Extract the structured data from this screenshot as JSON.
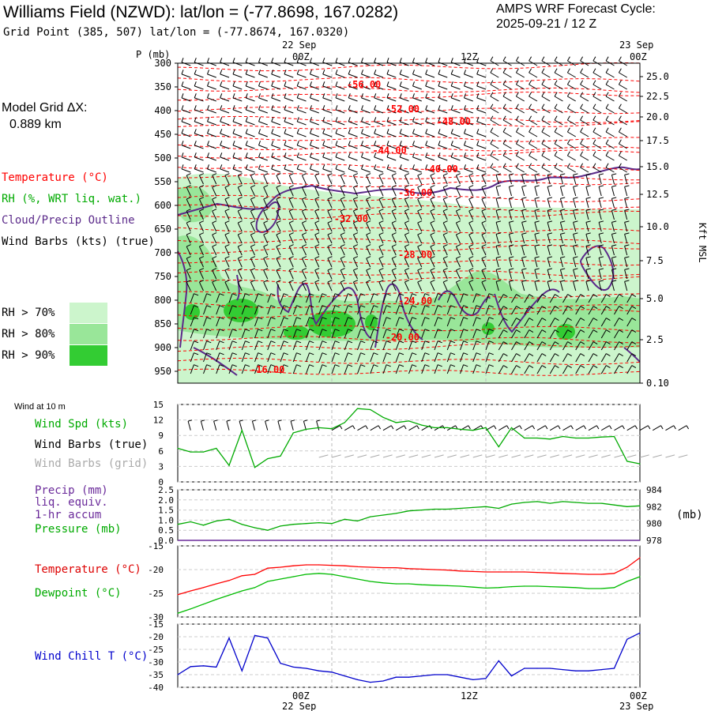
{
  "header": {
    "title": "Williams Field (NZWD):  lat/lon = (-77.8698, 167.0282)",
    "grid_point": "Grid Point (385, 507) lat/lon = (-77.8674, 167.0320)",
    "cycle_line1": "AMPS WRF Forecast Cycle:",
    "cycle_line2": "2025-09-21 / 12  Z"
  },
  "side": {
    "model_grid": "Model Grid ΔX:",
    "model_grid_value": "0.889 km",
    "temperature": "Temperature (°C)",
    "rh": "RH (%, WRT liq. wat.)",
    "cloud": "Cloud/Precip Outline",
    "wind_barbs": "Wind Barbs (kts) (true)",
    "rh70": "RH > 70%",
    "rh80": "RH > 80%",
    "rh90": "RH > 90%"
  },
  "colors": {
    "temperature": "#ff0000",
    "rh70": "#ccf5cc",
    "rh80": "#99e699",
    "rh90": "#33cc33",
    "cloud": "#5b2a8a",
    "wind": "#00aa00",
    "precip": "#6a2a9a",
    "pressure": "#00aa00",
    "dewpoint": "#00bb00",
    "windchill": "#0000cc",
    "grid_barbs": "#aaaaaa"
  },
  "time_axis": {
    "top_date_left": "22 Sep",
    "top_date_right": "23 Sep",
    "ticks": [
      "00Z",
      "12Z",
      "00Z"
    ],
    "bottom_dates": [
      "22 Sep",
      "23 Sep"
    ]
  },
  "panel_labels": {
    "wind_at_10m": "Wind at 10 m",
    "wind_spd": "Wind Spd (kts)",
    "wind_barbs_true": "Wind Barbs (true)",
    "wind_barbs_grid": "Wind Barbs (grid)",
    "precip": "Precip (mm)",
    "liq_equiv": "liq. equiv.",
    "accum": "1-hr accum",
    "pressure": "Pressure (mb)",
    "pressure_unit": "(mb)",
    "temperature": "Temperature (°C)",
    "dewpoint": "Dewpoint (°C)",
    "windchill": "Wind Chill T (°C)",
    "p_axis_label": "P (mb)",
    "kft_label": "Kft MSL"
  },
  "chart_data": [
    {
      "type": "heatmap",
      "panel": "vertical cross-section",
      "y_axis": {
        "label": "P (mb)",
        "ticks": [
          300,
          350,
          400,
          450,
          500,
          550,
          600,
          650,
          700,
          750,
          800,
          850,
          900,
          950
        ],
        "range": [
          300,
          975
        ]
      },
      "y2_axis": {
        "label": "Kft MSL",
        "ticks": [
          "25.0",
          "22.5",
          "20.0",
          "17.5",
          "15.0",
          "12.5",
          "10.0",
          "7.5",
          "5.0",
          "2.5",
          "0.10"
        ]
      },
      "x_range_hours": [
        -12,
        24
      ],
      "temperature_contour_labels": [
        {
          "label": "-56.00",
          "hour": 2.5,
          "p": 352
        },
        {
          "label": "-52.00",
          "hour": 5.5,
          "p": 403
        },
        {
          "label": "-48.00",
          "hour": 9.5,
          "p": 430
        },
        {
          "label": "-44.00",
          "hour": 4.5,
          "p": 491
        },
        {
          "label": "-40.00",
          "hour": 8.5,
          "p": 530
        },
        {
          "label": "-36.00",
          "hour": 6.5,
          "p": 580
        },
        {
          "label": "-32.00",
          "hour": 1.5,
          "p": 635
        },
        {
          "label": "-28.00",
          "hour": 6.5,
          "p": 711
        },
        {
          "label": "-24.00",
          "hour": 6.5,
          "p": 808
        },
        {
          "label": "-20.00",
          "hour": 5.5,
          "p": 885
        },
        {
          "label": "-16.00",
          "hour": -5.0,
          "p": 953
        }
      ]
    },
    {
      "type": "line",
      "panel": "wind at 10 m",
      "ylim": [
        0,
        15
      ],
      "yticks": [
        0,
        3,
        6,
        9,
        12,
        15
      ],
      "x_hours": [
        -12,
        -11,
        -10,
        -9,
        -8,
        -7,
        -6,
        -5,
        -4,
        -3,
        -2,
        -1,
        0,
        1,
        2,
        3,
        4,
        5,
        6,
        7,
        8,
        9,
        10,
        11,
        12,
        13,
        14,
        15,
        16,
        17,
        18,
        19,
        20,
        21,
        22,
        23,
        24
      ],
      "series": [
        {
          "name": "Wind Spd (kts)",
          "values": [
            6.5,
            5.8,
            5.8,
            6.5,
            3.2,
            10.0,
            2.8,
            4.5,
            5.0,
            9.5,
            10.2,
            10.5,
            10.3,
            11.5,
            14.2,
            14.0,
            12.5,
            11.5,
            11.8,
            11.0,
            10.5,
            10.5,
            10.2,
            10.0,
            10.5,
            6.8,
            10.5,
            8.5,
            8.5,
            8.3,
            8.8,
            8.5,
            8.5,
            8.7,
            8.8,
            4.0,
            3.5
          ]
        }
      ]
    },
    {
      "type": "line",
      "panel": "precip / pressure",
      "ylim": [
        0,
        2.5
      ],
      "yticks": [
        "0.0",
        "0.5",
        "1.0",
        "1.5",
        "2.0",
        "2.5"
      ],
      "y2ticks": [
        "978",
        "980",
        "982",
        "984"
      ],
      "x_hours": [
        -12,
        -11,
        -10,
        -9,
        -8,
        -7,
        -6,
        -5,
        -4,
        -3,
        -2,
        -1,
        0,
        1,
        2,
        3,
        4,
        5,
        6,
        7,
        8,
        9,
        10,
        11,
        12,
        13,
        14,
        15,
        16,
        17,
        18,
        19,
        20,
        21,
        22,
        23,
        24
      ],
      "series": [
        {
          "name": "Pressure (mb)",
          "values": [
            979.9,
            980.2,
            979.8,
            980.3,
            980.5,
            979.9,
            979.5,
            979.2,
            979.7,
            979.9,
            980.0,
            980.1,
            980.0,
            980.5,
            980.3,
            980.8,
            981.0,
            981.2,
            981.5,
            981.6,
            981.7,
            981.7,
            981.8,
            981.9,
            982.0,
            981.8,
            982.3,
            982.5,
            982.6,
            982.4,
            982.6,
            982.5,
            982.4,
            982.4,
            982.2,
            982.0,
            982.1
          ]
        },
        {
          "name": "Precip (mm)",
          "values": [
            0,
            0,
            0,
            0,
            0,
            0,
            0,
            0,
            0,
            0,
            0,
            0,
            0,
            0,
            0,
            0,
            0,
            0,
            0,
            0,
            0,
            0,
            0,
            0,
            0,
            0,
            0,
            0,
            0,
            0,
            0,
            0,
            0,
            0,
            0,
            0,
            0
          ]
        }
      ]
    },
    {
      "type": "line",
      "panel": "temperature / dewpoint",
      "ylim": [
        -30,
        -15
      ],
      "yticks": [
        -15,
        -20,
        -25,
        -30
      ],
      "x_hours": [
        -12,
        -11,
        -10,
        -9,
        -8,
        -7,
        -6,
        -5,
        -4,
        -3,
        -2,
        -1,
        0,
        1,
        2,
        3,
        4,
        5,
        6,
        7,
        8,
        9,
        10,
        11,
        12,
        13,
        14,
        15,
        16,
        17,
        18,
        19,
        20,
        21,
        22,
        23,
        24
      ],
      "series": [
        {
          "name": "Temperature (°C)",
          "values": [
            -25.3,
            -24.5,
            -23.8,
            -23.0,
            -22.3,
            -21.3,
            -21.0,
            -19.7,
            -19.5,
            -19.2,
            -19.0,
            -19.0,
            -19.1,
            -19.2,
            -19.4,
            -19.5,
            -19.6,
            -19.6,
            -19.8,
            -19.9,
            -20.0,
            -20.1,
            -20.3,
            -20.4,
            -20.5,
            -20.5,
            -20.5,
            -20.5,
            -20.6,
            -20.7,
            -20.8,
            -20.9,
            -21.0,
            -21.0,
            -20.8,
            -19.5,
            -17.5
          ]
        },
        {
          "name": "Dewpoint (°C)",
          "values": [
            -29.2,
            -28.3,
            -27.3,
            -26.3,
            -25.4,
            -24.5,
            -23.8,
            -22.5,
            -22.0,
            -21.5,
            -21.0,
            -20.8,
            -21.0,
            -21.5,
            -22.0,
            -22.5,
            -22.8,
            -23.0,
            -23.0,
            -23.2,
            -23.3,
            -23.4,
            -23.5,
            -23.7,
            -23.9,
            -23.8,
            -23.6,
            -23.5,
            -23.5,
            -23.6,
            -23.7,
            -23.8,
            -24.0,
            -24.0,
            -23.8,
            -22.5,
            -21.5
          ]
        }
      ]
    },
    {
      "type": "line",
      "panel": "wind chill",
      "ylim": [
        -40,
        -15
      ],
      "yticks": [
        -15,
        -20,
        -25,
        -30,
        -35,
        -40
      ],
      "x_hours": [
        -12,
        -11,
        -10,
        -9,
        -8,
        -7,
        -6,
        -5,
        -4,
        -3,
        -2,
        -1,
        0,
        1,
        2,
        3,
        4,
        5,
        6,
        7,
        8,
        9,
        10,
        11,
        12,
        13,
        14,
        15,
        16,
        17,
        18,
        19,
        20,
        21,
        22,
        23,
        24
      ],
      "series": [
        {
          "name": "Wind Chill T (°C)",
          "values": [
            -35.0,
            -31.8,
            -31.5,
            -32.0,
            -20.5,
            -33.5,
            -19.5,
            -20.5,
            -30.5,
            -32.0,
            -32.5,
            -33.5,
            -34.0,
            -35.5,
            -37.0,
            -38.0,
            -37.5,
            -36.0,
            -36.0,
            -35.5,
            -35.0,
            -35.0,
            -36.0,
            -37.0,
            -36.5,
            -29.5,
            -35.5,
            -32.5,
            -32.5,
            -32.5,
            -33.0,
            -33.5,
            -33.5,
            -33.0,
            -32.5,
            -21.0,
            -18.5
          ]
        }
      ]
    }
  ]
}
